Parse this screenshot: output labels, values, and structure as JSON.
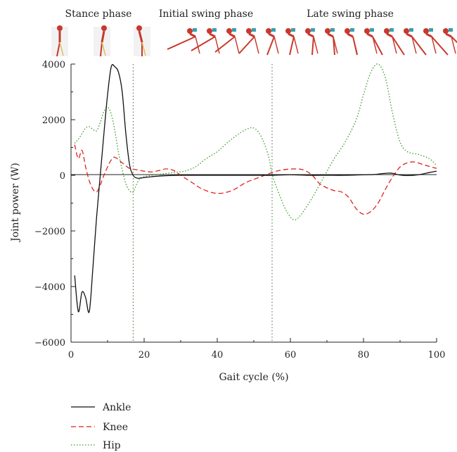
{
  "chart_data": {
    "type": "line",
    "title": "",
    "xlabel": "Gait cycle (%)",
    "ylabel": "Joint power (W)",
    "xlim": [
      0,
      100
    ],
    "ylim": [
      -6000,
      4000
    ],
    "xticks": [
      0,
      20,
      40,
      60,
      80,
      100
    ],
    "yticks": [
      -6000,
      -4000,
      -2000,
      0,
      2000,
      4000
    ],
    "grid": false,
    "legend_position": "bottom-left",
    "phase_labels": [
      "Stance phase",
      "Initial swing phase",
      "Late swing phase"
    ],
    "phase_boundaries": [
      17,
      55
    ],
    "series": [
      {
        "name": "Ankle",
        "color": "#111111",
        "style": "solid",
        "x": [
          1,
          2,
          3,
          4,
          5,
          6,
          7,
          8,
          9,
          10,
          11,
          12,
          13,
          14,
          15,
          16,
          17,
          18,
          19,
          20,
          22,
          25,
          30,
          40,
          50,
          55,
          60,
          65,
          70,
          75,
          80,
          83,
          85,
          87,
          88,
          90,
          92,
          95,
          98,
          100
        ],
        "values": [
          -3600,
          -4900,
          -4200,
          -4400,
          -4900,
          -3300,
          -1500,
          0,
          1500,
          2900,
          3900,
          3900,
          3700,
          3000,
          1500,
          400,
          0,
          -100,
          -100,
          -80,
          -50,
          -20,
          0,
          0,
          0,
          0,
          20,
          0,
          0,
          0,
          20,
          30,
          60,
          80,
          70,
          10,
          -10,
          20,
          100,
          150
        ]
      },
      {
        "name": "Knee",
        "color": "#e0221e",
        "style": "dashed",
        "x": [
          1,
          2,
          3,
          4,
          5,
          6,
          7,
          8,
          9,
          10,
          11,
          12,
          14,
          16,
          18,
          20,
          22,
          24,
          26,
          28,
          30,
          33,
          36,
          40,
          44,
          48,
          52,
          55,
          58,
          62,
          64,
          66,
          68,
          70,
          72,
          74,
          76,
          78,
          80,
          82,
          84,
          86,
          88,
          90,
          92,
          94,
          96,
          98,
          100
        ],
        "values": [
          1100,
          600,
          900,
          300,
          -200,
          -500,
          -600,
          -350,
          0,
          300,
          550,
          650,
          450,
          250,
          200,
          150,
          120,
          170,
          230,
          180,
          0,
          -250,
          -500,
          -650,
          -550,
          -250,
          -50,
          100,
          200,
          230,
          170,
          0,
          -300,
          -450,
          -550,
          -600,
          -800,
          -1200,
          -1400,
          -1300,
          -1000,
          -500,
          -50,
          300,
          450,
          480,
          400,
          320,
          250
        ]
      },
      {
        "name": "Hip",
        "color": "#3a9a2a",
        "style": "dotted",
        "x": [
          1,
          2,
          3,
          4,
          5,
          6,
          7,
          8,
          9,
          10,
          11,
          12,
          13,
          14,
          15,
          16,
          17,
          18,
          19,
          20,
          22,
          25,
          28,
          31,
          34,
          37,
          40,
          43,
          46,
          48,
          50,
          52,
          54,
          55,
          57,
          59,
          61,
          63,
          66,
          69,
          72,
          75,
          78,
          80,
          82,
          84,
          86,
          88,
          90,
          92,
          95,
          98,
          100
        ],
        "values": [
          1150,
          1300,
          1500,
          1700,
          1750,
          1650,
          1600,
          1900,
          2300,
          2450,
          2200,
          1600,
          800,
          200,
          -300,
          -550,
          -600,
          -300,
          -100,
          -50,
          0,
          50,
          100,
          150,
          300,
          600,
          850,
          1200,
          1500,
          1650,
          1700,
          1400,
          700,
          50,
          -700,
          -1300,
          -1600,
          -1400,
          -800,
          -100,
          600,
          1200,
          2000,
          2900,
          3700,
          4000,
          3500,
          2200,
          1200,
          850,
          750,
          600,
          350
        ]
      }
    ]
  }
}
